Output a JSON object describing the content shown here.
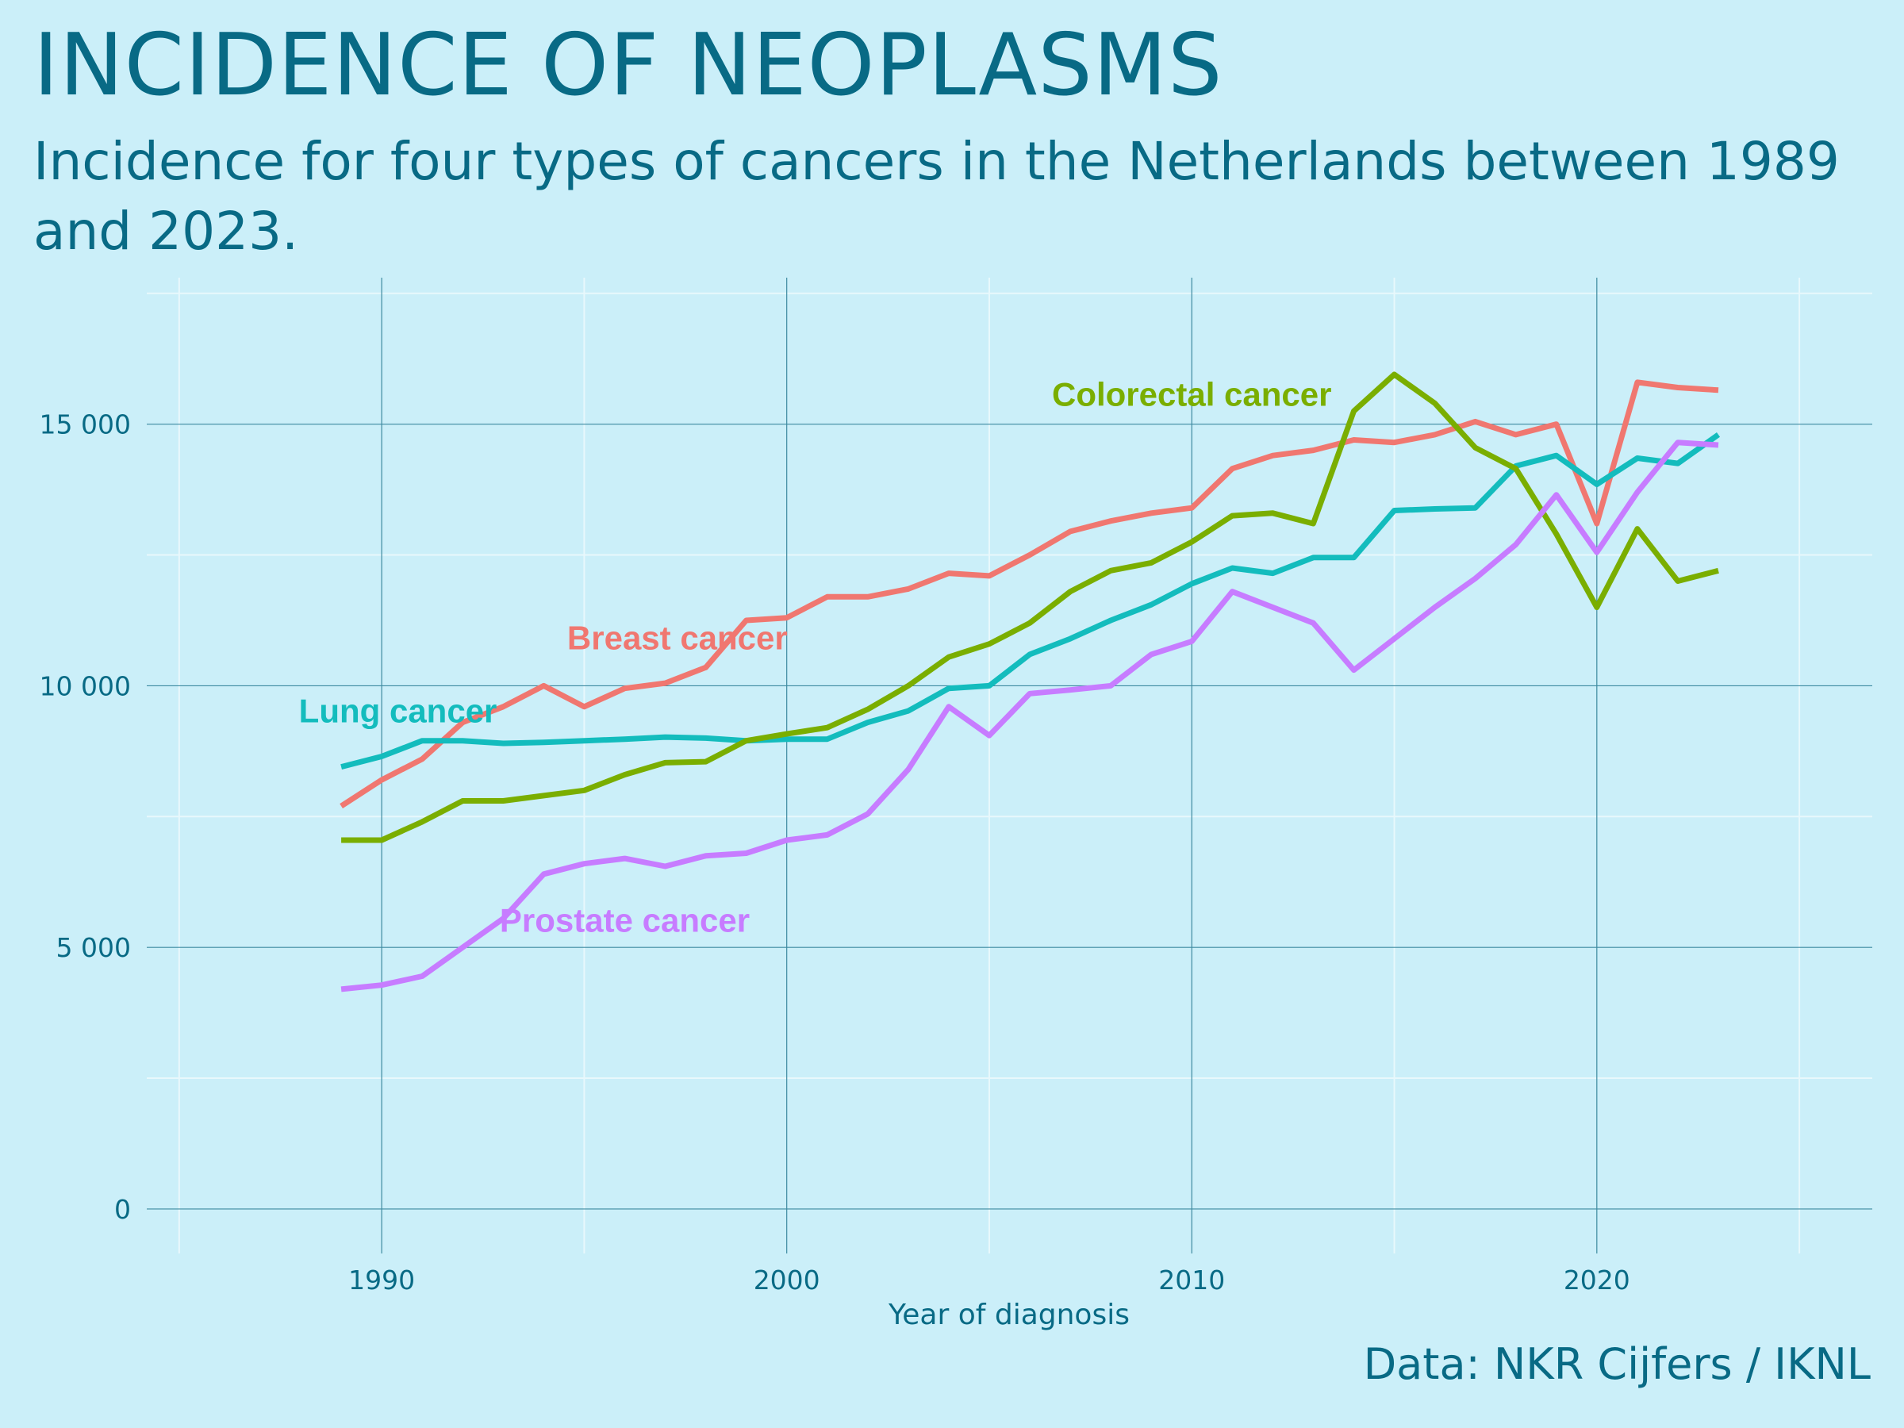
{
  "title": "INCIDENCE OF NEOPLASMS",
  "subtitle": "Incidence for four types of cancers in the Netherlands between 1989 and 2023.",
  "caption": "Data: NKR Cijfers / IKNL",
  "chart_data": {
    "type": "line",
    "title": "INCIDENCE OF NEOPLASMS",
    "subtitle": "Incidence for four types of cancers in the Netherlands between 1989 and 2023.",
    "xlabel": "Year of diagnosis",
    "ylabel": "",
    "xlim": [
      1984.2,
      2026.8
    ],
    "ylim": [
      -850,
      17800
    ],
    "x_ticks": [
      1990,
      2000,
      2010,
      2020
    ],
    "x_tick_labels": [
      "1990",
      "2000",
      "2010",
      "2020"
    ],
    "y_ticks": [
      0,
      5000,
      10000,
      15000
    ],
    "y_tick_labels": [
      "0",
      "5 000",
      "10 000",
      "15 000"
    ],
    "grid": true,
    "legend": "direct labels",
    "x": [
      1989,
      1990,
      1991,
      1992,
      1993,
      1994,
      1995,
      1996,
      1997,
      1998,
      1999,
      2000,
      2001,
      2002,
      2003,
      2004,
      2005,
      2006,
      2007,
      2008,
      2009,
      2010,
      2011,
      2012,
      2013,
      2014,
      2015,
      2016,
      2017,
      2018,
      2019,
      2020,
      2021,
      2022,
      2023
    ],
    "series": [
      {
        "name": "Breast cancer",
        "color": "#f07770",
        "values": [
          7700,
          8200,
          8600,
          9300,
          9600,
          10000,
          9600,
          9950,
          10050,
          10350,
          11250,
          11300,
          11700,
          11700,
          11850,
          12150,
          12100,
          12500,
          12950,
          13150,
          13300,
          13400,
          14150,
          14400,
          14500,
          14700,
          14650,
          14800,
          15050,
          14800,
          15000,
          13100,
          15800,
          15700,
          15650
        ]
      },
      {
        "name": "Lung cancer",
        "color": "#13bcbd",
        "values": [
          8450,
          8650,
          8950,
          8950,
          8900,
          8920,
          8950,
          8980,
          9020,
          9000,
          8950,
          8980,
          8980,
          9300,
          9520,
          9950,
          10000,
          10600,
          10900,
          11250,
          11550,
          11950,
          12250,
          12150,
          12450,
          12450,
          13350,
          13380,
          13400,
          14200,
          14400,
          13850,
          14350,
          14250,
          14800
        ]
      },
      {
        "name": "Colorectal cancer",
        "color": "#7aae00",
        "values": [
          7050,
          7050,
          7400,
          7800,
          7800,
          7900,
          8000,
          8300,
          8530,
          8550,
          8950,
          9080,
          9200,
          9550,
          10000,
          10550,
          10800,
          11200,
          11800,
          12200,
          12350,
          12750,
          13250,
          13300,
          13100,
          15250,
          15950,
          15400,
          14550,
          14150,
          12900,
          11500,
          13000,
          12000,
          12200
        ]
      },
      {
        "name": "Prostate cancer",
        "color": "#c77cff",
        "values": [
          4200,
          4280,
          4450,
          5000,
          5550,
          6400,
          6600,
          6700,
          6550,
          6750,
          6800,
          7050,
          7150,
          7550,
          8400,
          9600,
          9050,
          9850,
          9920,
          10000,
          10600,
          10850,
          11800,
          11500,
          11200,
          10300,
          10900,
          11500,
          12050,
          12700,
          13650,
          12550,
          13700,
          14650,
          14600
        ]
      }
    ],
    "annotations": [
      {
        "text": "Breast cancer",
        "series": "Breast cancer",
        "x": 1997.3,
        "y": 10700
      },
      {
        "text": "Lung cancer",
        "series": "Lung cancer",
        "x": 1990.4,
        "y": 9300
      },
      {
        "text": "Colorectal cancer",
        "series": "Colorectal cancer",
        "x": 2010.0,
        "y": 15350
      },
      {
        "text": "Prostate cancer",
        "series": "Prostate cancer",
        "x": 1996.0,
        "y": 5300
      }
    ]
  }
}
